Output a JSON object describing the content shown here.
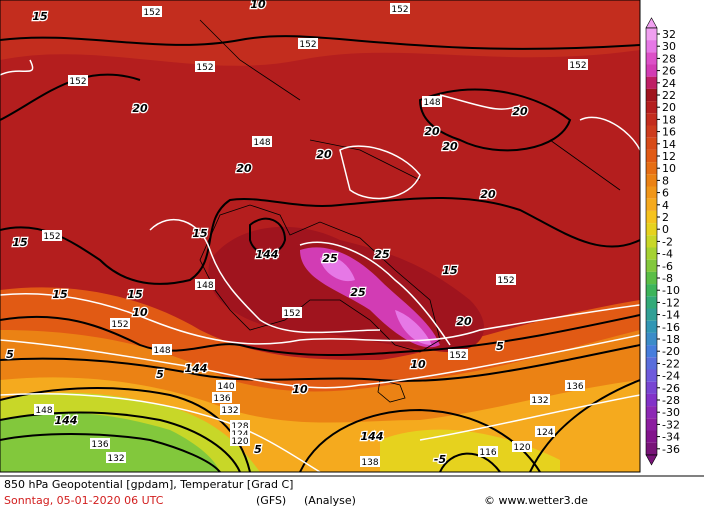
{
  "map": {
    "caption": "850 hPa Geopotential [gpdam], Temperatur [Grad C]",
    "date": "Sonntag, 05-01-2020  06 UTC",
    "model": "(GFS)",
    "run": "(Analyse)",
    "credit": "© www.wetter3.de",
    "colorbar": {
      "ticks": [
        32,
        30,
        28,
        26,
        24,
        22,
        20,
        18,
        16,
        14,
        12,
        10,
        8,
        6,
        4,
        2,
        0,
        -2,
        -4,
        -6,
        -8,
        -10,
        -12,
        -14,
        -16,
        -18,
        -20,
        -22,
        -24,
        -26,
        -28,
        -30,
        -32,
        -34,
        -36
      ],
      "colors": [
        "#f0a0f0",
        "#e678e6",
        "#dc50c8",
        "#d23cb4",
        "#be1e64",
        "#a0141e",
        "#b41e1e",
        "#c32d1e",
        "#cd3c1e",
        "#d74b19",
        "#e15a14",
        "#e66e14",
        "#eb8214",
        "#f09619",
        "#f5aa1e",
        "#f5c31e",
        "#e6d21e",
        "#c8d728",
        "#a5d232",
        "#82c83c",
        "#5abe46",
        "#3cb45a",
        "#32aa78",
        "#32a096",
        "#3296b4",
        "#3c8cc8",
        "#467ddc",
        "#5a6edc",
        "#6e5adc",
        "#7846d2",
        "#8232c8",
        "#8c28b4",
        "#8c1ea0",
        "#82148c",
        "#781478"
      ]
    },
    "geo_labels": [
      "152",
      "152",
      "152",
      "152",
      "152",
      "152",
      "148",
      "148",
      "148",
      "152",
      "152",
      "152",
      "148",
      "152",
      "140",
      "136",
      "132",
      "128",
      "124",
      "120",
      "152",
      "136",
      "132",
      "124",
      "148",
      "138",
      "116",
      "120",
      "136",
      "132"
    ],
    "temp_labels": [
      "15",
      "10",
      "20",
      "20",
      "20",
      "20",
      "20",
      "25",
      "25",
      "25",
      "15",
      "15",
      "10",
      "10",
      "5",
      "5",
      "5",
      "-5",
      "20",
      "20",
      "15",
      "15",
      "20",
      "10",
      "15",
      "5"
    ],
    "geo_heavy": [
      "144",
      "144",
      "144",
      "144"
    ]
  }
}
